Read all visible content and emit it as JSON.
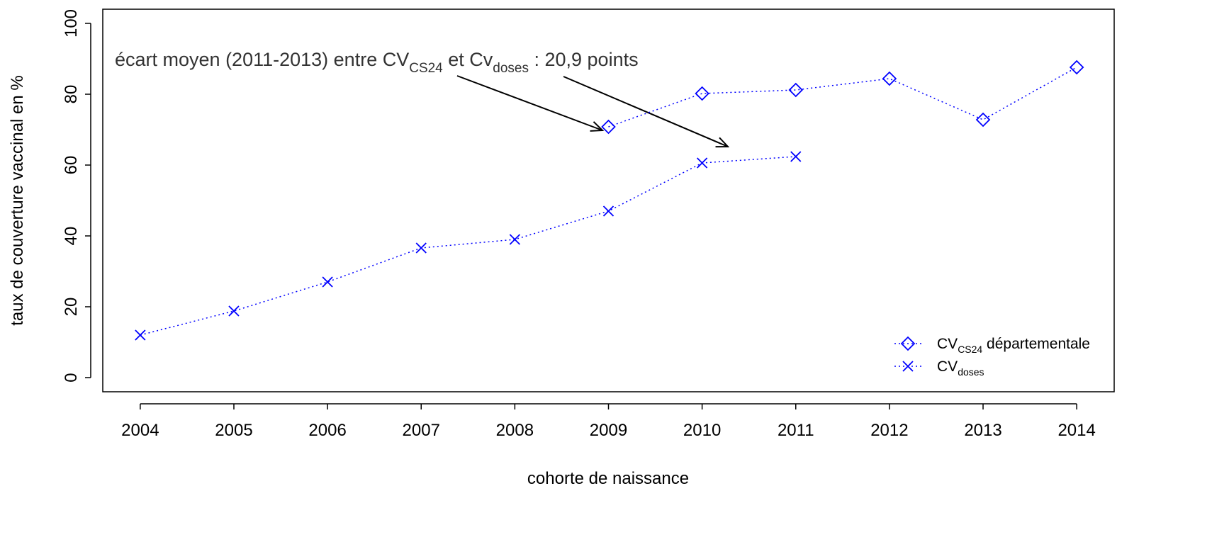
{
  "chart_data": {
    "type": "line",
    "ylabel": "taux de couverture vaccinal en %",
    "xlabel": "cohorte de naissance",
    "annotation": [
      "écart moyen (2011-2013) entre CV",
      "CS24",
      " et Cv",
      "doses",
      " : 20,9 points"
    ],
    "xlim": [
      2003.6,
      2014.4
    ],
    "xticks": [
      2004,
      2005,
      2006,
      2007,
      2008,
      2009,
      2010,
      2011,
      2012,
      2013,
      2014
    ],
    "ylim": [
      -4,
      104
    ],
    "yticks": [
      0,
      20,
      40,
      60,
      80,
      100
    ],
    "legend": "bottom-right",
    "series": [
      {
        "name": [
          "CV",
          "CS24",
          " départementale"
        ],
        "color": "#0000ff",
        "marker": "diamond",
        "x": [
          2009,
          2010,
          2011,
          2012,
          2013,
          2014
        ],
        "values": [
          70.8,
          80.2,
          81.2,
          84.4,
          72.8,
          87.6
        ]
      },
      {
        "name": [
          "CV",
          "doses"
        ],
        "color": "#0000ff",
        "marker": "cross",
        "x": [
          2004,
          2005,
          2006,
          2007,
          2008,
          2009,
          2010,
          2011
        ],
        "values": [
          12,
          18.8,
          27,
          36.6,
          39,
          47,
          60.6,
          62.4
        ]
      }
    ]
  }
}
